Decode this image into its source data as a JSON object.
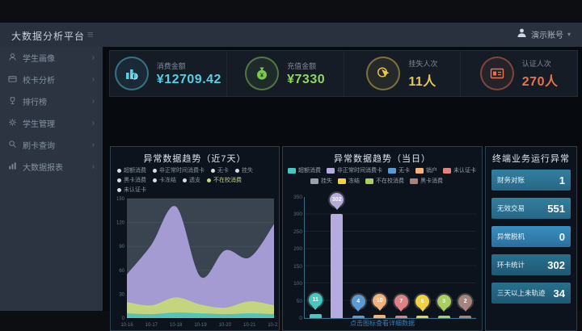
{
  "header": {
    "app_title": "大数据分析平台",
    "user_name": "演示账号",
    "caret": "▾"
  },
  "sidebar": {
    "items": [
      {
        "label": "学生画像",
        "icon": "user-icon"
      },
      {
        "label": "校卡分析",
        "icon": "card-icon"
      },
      {
        "label": "排行榜",
        "icon": "trophy-icon"
      },
      {
        "label": "学生管理",
        "icon": "gear-icon"
      },
      {
        "label": "刷卡查询",
        "icon": "search-icon"
      },
      {
        "label": "大数据报表",
        "icon": "report-icon"
      }
    ]
  },
  "kpis": [
    {
      "label": "消费金额",
      "value": "¥12709.42",
      "color": "#57cfe2",
      "icon": "bar-chart-icon"
    },
    {
      "label": "充值金额",
      "value": "¥7330",
      "color": "#93d463",
      "icon": "money-bag-icon"
    },
    {
      "label": "挂失人次",
      "value": "11人",
      "color": "#e9c94d",
      "icon": "hand-click-icon"
    },
    {
      "label": "认证人次",
      "value": "270人",
      "color": "#e8744d",
      "icon": "id-card-icon"
    }
  ],
  "chart_data": [
    {
      "type": "area",
      "title": "异常数据趋势（近7天）",
      "x": [
        "10-16",
        "10-17",
        "10-18",
        "10-19",
        "10-20",
        "10-21",
        "10-22"
      ],
      "ylim": [
        0,
        150
      ],
      "yticks": [
        0,
        30,
        60,
        90,
        120,
        150
      ],
      "legend_rows": [
        [
          "超额消费",
          "非正常时间消费卡",
          "无卡",
          "挂失"
        ],
        [
          "黑卡消费",
          "卡冻结",
          "透支",
          "不在校消费"
        ],
        [
          "未认证卡"
        ]
      ],
      "legend_active": "不在校消费",
      "legend_active_color": "#c6d87a",
      "series": [
        {
          "name": "非正常时间消费卡",
          "color": "#a9a0d8",
          "values": [
            55,
            92,
            140,
            52,
            85,
            76,
            118
          ]
        },
        {
          "name": "不在校消费",
          "color": "#c6d87a",
          "values": [
            20,
            16,
            26,
            17,
            13,
            21,
            16
          ]
        },
        {
          "name": "超额消费",
          "color": "#4fc3bc",
          "values": [
            6,
            5,
            7,
            6,
            5,
            6,
            5
          ]
        }
      ]
    },
    {
      "type": "bar",
      "title": "异常数据趋势（当日）",
      "ylim": [
        0,
        350
      ],
      "yticks": [
        0,
        50,
        100,
        150,
        200,
        250,
        300,
        350
      ],
      "categories": [
        "超额消费",
        "非正常时间消费卡",
        "无卡",
        "销户",
        "未认证卡",
        "冻结",
        "不在校消费",
        "黑卡消费"
      ],
      "values": [
        11,
        302,
        4,
        10,
        7,
        6,
        3,
        2
      ],
      "colors": [
        "#45c8bf",
        "#b5abde",
        "#5b9bd5",
        "#f2b27e",
        "#e08282",
        "#f0d045",
        "#a8d05a",
        "#a8837b"
      ],
      "legend_rows": [
        [
          "超额消费",
          "非正常时间消费卡",
          "无卡",
          "销户",
          "未认证卡"
        ],
        [
          "挂失",
          "冻结",
          "不在校消费",
          "黑卡消费"
        ]
      ],
      "legend_colors": {
        "超额消费": "#45c8bf",
        "非正常时间消费卡": "#b5abde",
        "无卡": "#5b9bd5",
        "销户": "#f2b27e",
        "未认证卡": "#e08282",
        "挂失": "#9aa0a6",
        "冻结": "#f0d045",
        "不在校消费": "#a8d05a",
        "黑卡消费": "#a8837b"
      }
    }
  ],
  "daily_footer_link": "点击图标查看详细数据",
  "terminal_panel": {
    "title": "终端业务运行异常",
    "rows": [
      {
        "label": "财务对账",
        "value": "1"
      },
      {
        "label": "无效交易",
        "value": "551"
      },
      {
        "label": "异常脱机",
        "value": "0"
      },
      {
        "label": "环卡统计",
        "value": "302"
      },
      {
        "label": "三天以上未轨迹",
        "value": "34"
      }
    ]
  }
}
